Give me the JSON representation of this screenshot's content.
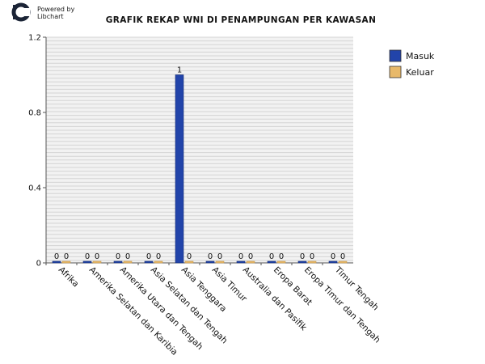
{
  "branding": {
    "line1": "Powered by",
    "line2": "Libchart"
  },
  "colors": {
    "masuk": "#2244aa",
    "keluar": "#e8b96a",
    "grid": "#d4d4d4",
    "plot_bg": "#f2f2f2",
    "axis": "#555555"
  },
  "chart_data": {
    "type": "bar",
    "title": "GRAFIK REKAP WNI DI PENAMPUNGAN PER KAWASAN",
    "xlabel": "",
    "ylabel": "",
    "categories": [
      "Afrika",
      "Amerika Selatan dan Karibia",
      "Amerika Utara dan Tengah",
      "Asia Selatan dan Tengah",
      "Asia Tenggara",
      "Asia Timur",
      "Australia dan Pasifik",
      "Eropa Barat",
      "Eropa Timur dan Tengah",
      "Timur Tengah"
    ],
    "series": [
      {
        "name": "Masuk",
        "values": [
          0,
          0,
          0,
          0,
          1,
          0,
          0,
          0,
          0,
          0
        ]
      },
      {
        "name": "Keluar",
        "values": [
          0,
          0,
          0,
          0,
          0,
          0,
          0,
          0,
          0,
          0
        ]
      }
    ],
    "ylim": [
      0,
      1.2
    ],
    "yticks": [
      0,
      0.4,
      0.8,
      1.2
    ],
    "ytick_labels": [
      "0",
      "0.4",
      "0.8",
      "1.2"
    ],
    "grid": true,
    "legend_position": "top-right"
  }
}
